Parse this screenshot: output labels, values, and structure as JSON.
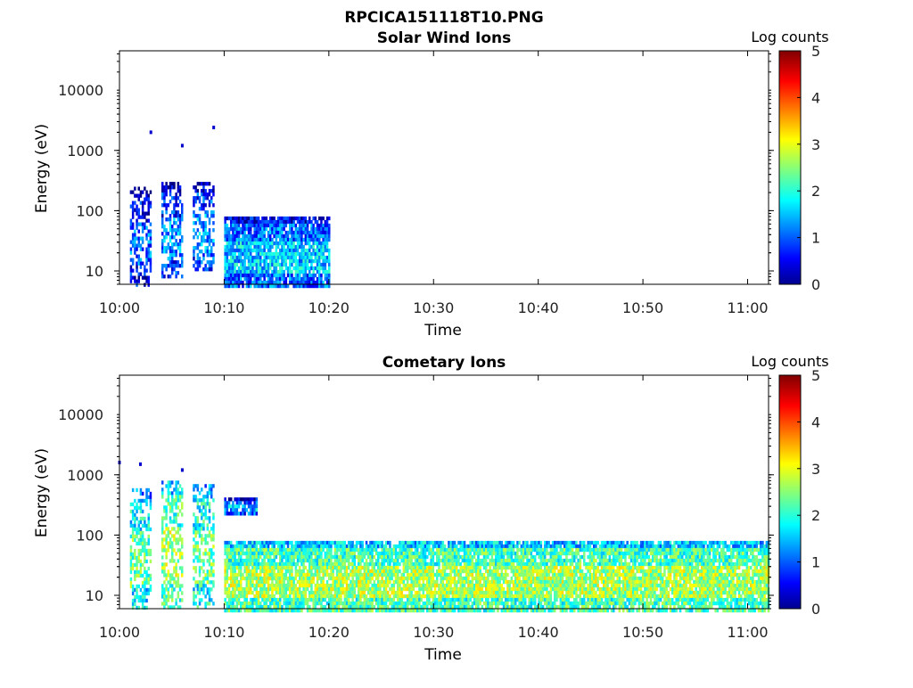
{
  "figure": {
    "title": "RPCICA151118T10.PNG"
  },
  "colorbar": {
    "label": "Log counts",
    "ticks": [
      "0",
      "1",
      "2",
      "3",
      "4",
      "5"
    ],
    "range": [
      0,
      5
    ],
    "colormap": "jet"
  },
  "chart_data": [
    {
      "type": "heatmap",
      "title": "Solar Wind Ions",
      "xlabel": "Time",
      "ylabel": "Energy (eV)",
      "y_scale": "log",
      "xlim": [
        "10:00",
        "11:02"
      ],
      "ylim": [
        6,
        45000
      ],
      "x_ticks": [
        "10:00",
        "10:10",
        "10:20",
        "10:30",
        "10:40",
        "10:50",
        "11:00"
      ],
      "y_ticks": [
        "10",
        "100",
        "1000",
        "10000"
      ],
      "value_label": "Log counts",
      "value_range": [
        0,
        5
      ],
      "regions": [
        {
          "t_start": "10:01",
          "t_end": "10:03",
          "e_min": 6,
          "e_max": 250,
          "typical_log_counts": 0.6
        },
        {
          "t_start": "10:04",
          "t_end": "10:06",
          "e_min": 8,
          "e_max": 300,
          "typical_log_counts": 0.8
        },
        {
          "t_start": "10:07",
          "t_end": "10:09",
          "e_min": 10,
          "e_max": 300,
          "typical_log_counts": 0.9
        },
        {
          "t_start": "10:10",
          "t_end": "10:20",
          "e_min": 6,
          "e_max": 80,
          "typical_log_counts": 1.1
        }
      ],
      "isolated_points": [
        {
          "t": "10:03",
          "e": 2000
        },
        {
          "t": "10:06",
          "e": 1200
        },
        {
          "t": "10:09",
          "e": 2400
        }
      ]
    },
    {
      "type": "heatmap",
      "title": "Cometary Ions",
      "xlabel": "Time",
      "ylabel": "Energy (eV)",
      "y_scale": "log",
      "xlim": [
        "10:00",
        "11:02"
      ],
      "ylim": [
        6,
        45000
      ],
      "x_ticks": [
        "10:00",
        "10:10",
        "10:20",
        "10:30",
        "10:40",
        "10:50",
        "11:00"
      ],
      "y_ticks": [
        "10",
        "100",
        "1000",
        "10000"
      ],
      "value_label": "Log counts",
      "value_range": [
        0,
        5
      ],
      "regions": [
        {
          "t_start": "10:01",
          "t_end": "10:03",
          "e_min": 6,
          "e_max": 600,
          "typical_log_counts": 1.8
        },
        {
          "t_start": "10:04",
          "t_end": "10:06",
          "e_min": 6,
          "e_max": 800,
          "typical_log_counts": 2.2
        },
        {
          "t_start": "10:07",
          "t_end": "10:09",
          "e_min": 6,
          "e_max": 700,
          "typical_log_counts": 1.9
        },
        {
          "t_start": "10:10",
          "t_end": "10:13",
          "e_min": 220,
          "e_max": 420,
          "typical_log_counts": 1.0
        },
        {
          "t_start": "10:10",
          "t_end": "11:02",
          "e_min": 6,
          "e_max": 80,
          "typical_log_counts": 2.2
        }
      ],
      "isolated_points": [
        {
          "t": "10:00",
          "e": 1600
        },
        {
          "t": "10:02",
          "e": 1500
        },
        {
          "t": "10:06",
          "e": 1200
        }
      ]
    }
  ]
}
